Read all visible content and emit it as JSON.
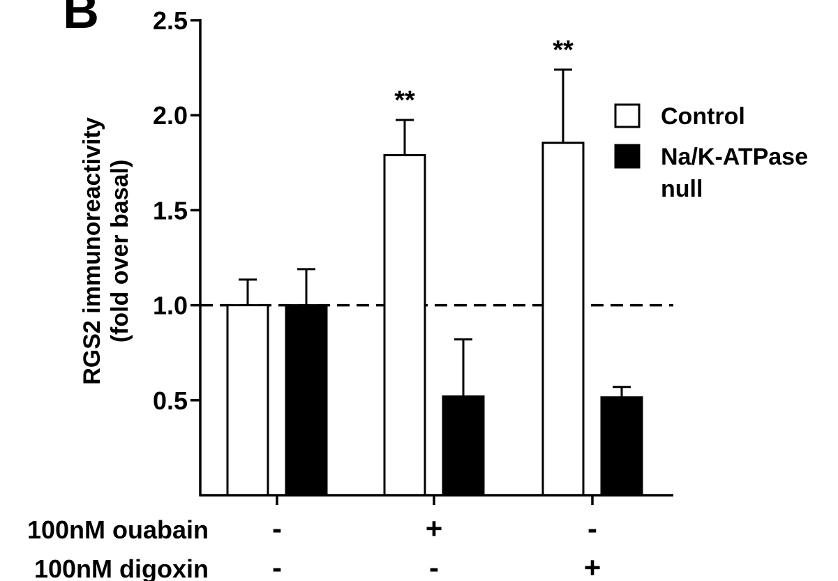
{
  "panel_label": "B",
  "chart_data": {
    "type": "bar",
    "ylabel_line1": "RGS2 immunoreactivity",
    "ylabel_line2": "(fold over basal)",
    "ylim": [
      0,
      2.5
    ],
    "yticks": [
      "0.5",
      "1.0",
      "1.5",
      "2.0",
      "2.5"
    ],
    "ytick_values": [
      0.5,
      1.0,
      1.5,
      2.0,
      2.5
    ],
    "reference_line": 1.0,
    "groups": 3,
    "series": [
      {
        "name": "Control",
        "fill": "#ffffff",
        "values": [
          1.0,
          1.79,
          1.855
        ],
        "errors": [
          0.135,
          0.185,
          0.385
        ],
        "annotations": [
          "",
          "**",
          "**"
        ]
      },
      {
        "name_line1": "Na/K-ATPase",
        "name_line2": "null",
        "fill": "#000000",
        "values": [
          1.0,
          0.52,
          0.515
        ],
        "errors": [
          0.19,
          0.3,
          0.055
        ],
        "annotations": [
          "",
          "",
          ""
        ]
      }
    ],
    "conditions": [
      {
        "label": "100nM ouabain",
        "marks": [
          "-",
          "+",
          "-"
        ]
      },
      {
        "label": "100nM digoxin",
        "marks": [
          "-",
          "-",
          "+"
        ]
      }
    ]
  }
}
